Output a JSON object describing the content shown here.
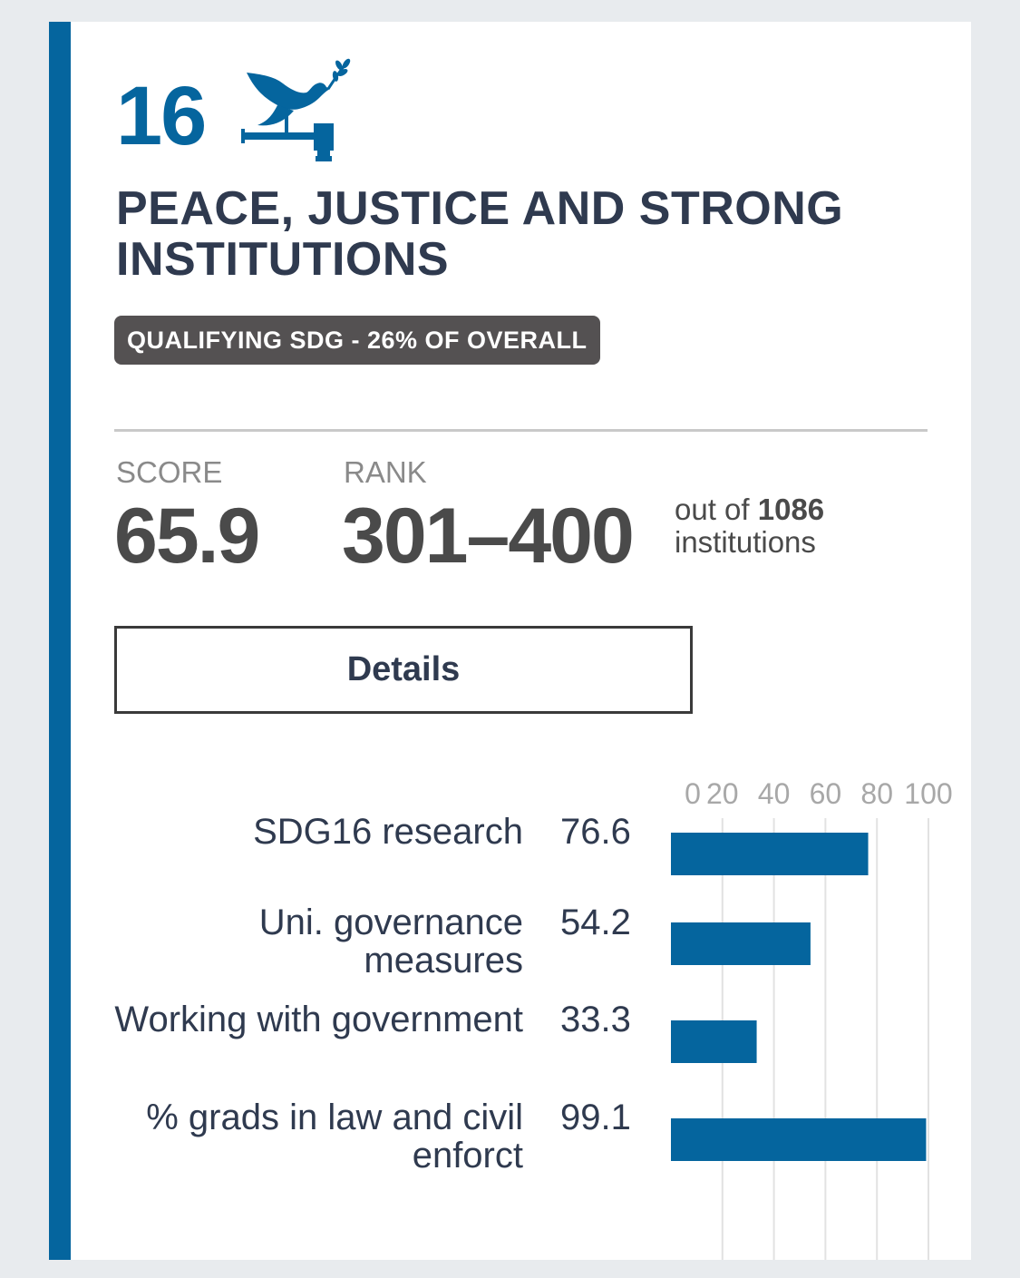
{
  "goal": {
    "number": "16",
    "title": "PEACE, JUSTICE AND STRONG INSTITUTIONS",
    "badge": "QUALIFYING SDG - 26% OF OVERALL",
    "icon": "dove-gavel-icon"
  },
  "score": {
    "label": "SCORE",
    "value": "65.9"
  },
  "rank": {
    "label": "RANK",
    "value": "301–400",
    "out_of_prefix": "out of",
    "total": "1086",
    "out_of_suffix": "institutions"
  },
  "details_button": {
    "label": "Details"
  },
  "colors": {
    "accent": "#05659e",
    "text": "#2f3a4f",
    "badge": "#545152",
    "value": "#4a4a4a"
  },
  "chart_data": {
    "type": "bar",
    "orientation": "horizontal",
    "categories": [
      "SDG16 research",
      "Uni. governance measures",
      "Working with government",
      "% grads in law and civil enforct"
    ],
    "values": [
      76.6,
      54.2,
      33.3,
      99.1
    ],
    "value_labels": [
      "76.6",
      "54.2",
      "33.3",
      "99.1"
    ],
    "xlim": [
      0,
      100
    ],
    "ticks": [
      0,
      20,
      40,
      60,
      80,
      100
    ],
    "grid": true,
    "bar_color": "#05659e"
  }
}
